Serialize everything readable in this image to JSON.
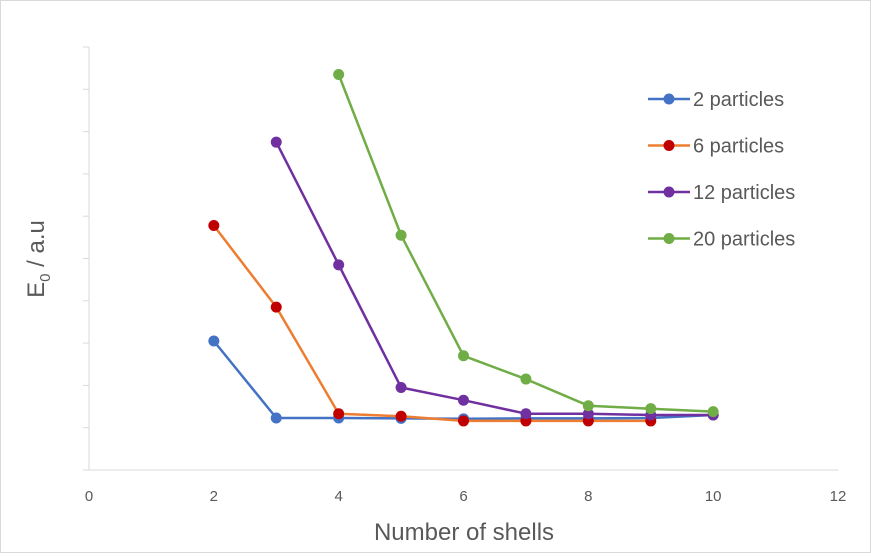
{
  "chart_data": {
    "type": "line",
    "xlabel": "Number of shells",
    "ylabel_main": "E",
    "ylabel_sub": "0",
    "ylabel_rest": " / a.u",
    "xlim": [
      0,
      12
    ],
    "x_ticks": [
      0,
      2,
      4,
      6,
      8,
      10,
      12
    ],
    "ylim": [
      0,
      10
    ],
    "y_tick_labels_shown": false,
    "grid": false,
    "legend_position": "right",
    "series": [
      {
        "name": "2 particles",
        "color": "#4472c4",
        "x": [
          2,
          3,
          4,
          5,
          6,
          7,
          8,
          9,
          10
        ],
        "y": [
          3.05,
          1.23,
          1.23,
          1.22,
          1.21,
          1.22,
          1.22,
          1.23,
          1.3
        ]
      },
      {
        "name": "6 particles",
        "color": "#ed7d31",
        "marker_color": "#c00000",
        "x": [
          2,
          3,
          4,
          5,
          6,
          7,
          8,
          9
        ],
        "y": [
          5.78,
          3.85,
          1.33,
          1.27,
          1.16,
          1.16,
          1.16,
          1.16
        ]
      },
      {
        "name": "12 particles",
        "color": "#7030a0",
        "x": [
          3,
          4,
          5,
          6,
          7,
          8,
          9,
          10
        ],
        "y": [
          7.75,
          4.85,
          1.95,
          1.65,
          1.33,
          1.33,
          1.3,
          1.3
        ]
      },
      {
        "name": "20 particles",
        "color": "#70ad47",
        "x": [
          4,
          5,
          6,
          7,
          8,
          9,
          10
        ],
        "y": [
          9.35,
          5.55,
          2.7,
          2.15,
          1.52,
          1.45,
          1.38
        ]
      }
    ]
  }
}
